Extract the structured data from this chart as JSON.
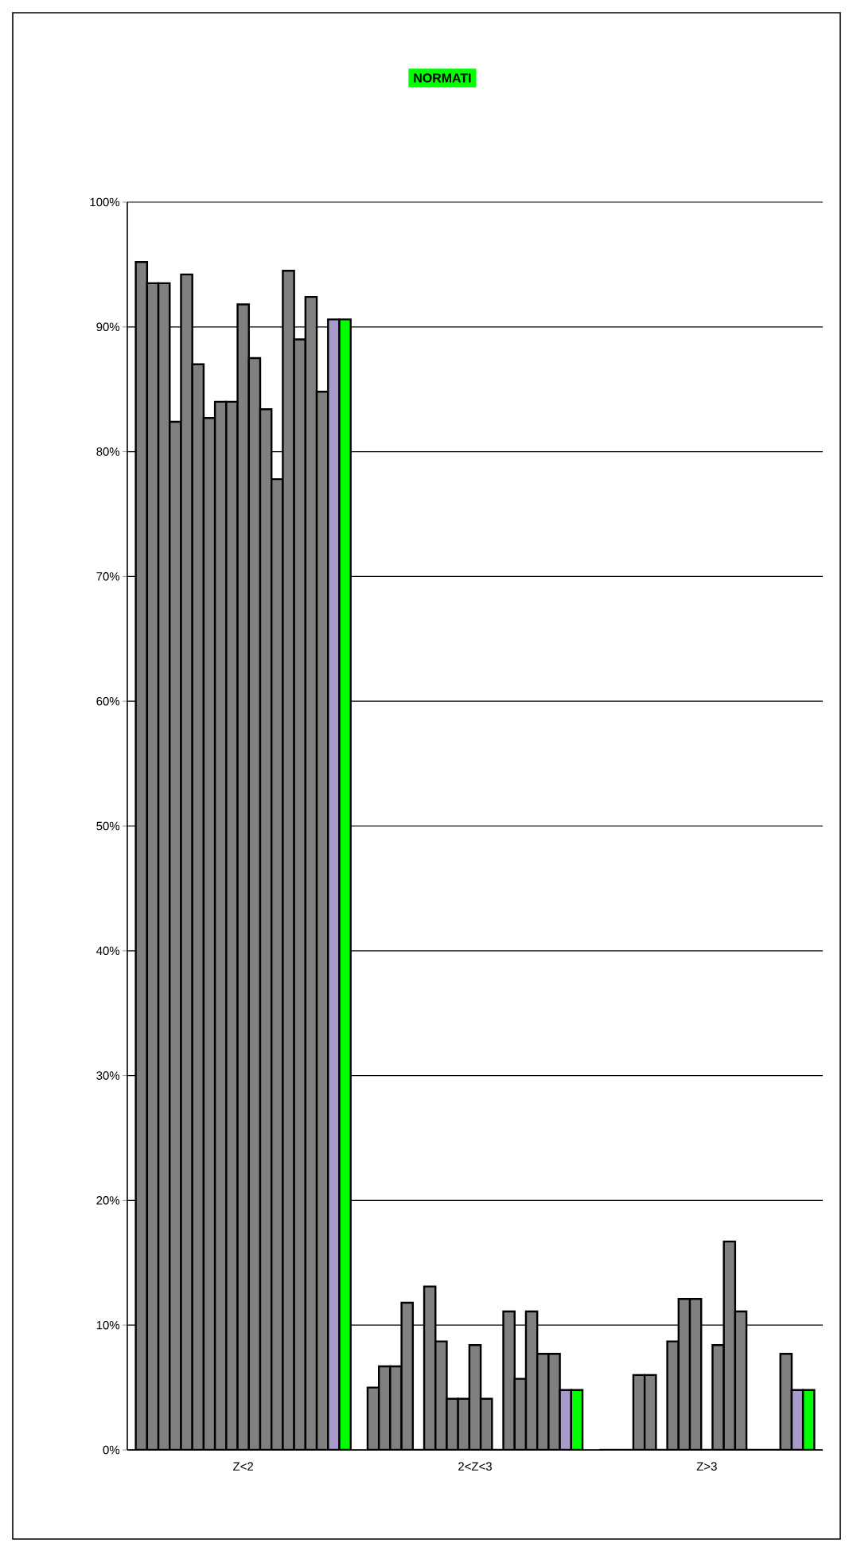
{
  "chart_data": {
    "type": "bar",
    "title": "NORMATI",
    "categories": [
      "Z<2",
      "2<Z<3",
      "Z>3"
    ],
    "ylim": [
      0,
      100
    ],
    "yticks": [
      {
        "value": 0,
        "label": "0%"
      },
      {
        "value": 10,
        "label": "10%"
      },
      {
        "value": 20,
        "label": "20%"
      },
      {
        "value": 30,
        "label": "30%"
      },
      {
        "value": 40,
        "label": "40%"
      },
      {
        "value": 50,
        "label": "50%"
      },
      {
        "value": 60,
        "label": "60%"
      },
      {
        "value": 70,
        "label": "70%"
      },
      {
        "value": 80,
        "label": "80%"
      },
      {
        "value": 90,
        "label": "90%"
      },
      {
        "value": 100,
        "label": "100%"
      }
    ],
    "grid": "y",
    "series": [
      {
        "color": "#808080",
        "values": [
          95.2,
          5.0,
          0
        ]
      },
      {
        "color": "#808080",
        "values": [
          93.5,
          6.7,
          0
        ]
      },
      {
        "color": "#808080",
        "values": [
          93.5,
          6.7,
          0
        ]
      },
      {
        "color": "#808080",
        "values": [
          82.4,
          11.8,
          6.0
        ]
      },
      {
        "color": "#808080",
        "values": [
          94.2,
          0,
          6.0
        ]
      },
      {
        "color": "#808080",
        "values": [
          87.0,
          13.1,
          0
        ]
      },
      {
        "color": "#808080",
        "values": [
          82.7,
          8.7,
          8.7
        ]
      },
      {
        "color": "#808080",
        "values": [
          84.0,
          4.1,
          12.1
        ]
      },
      {
        "color": "#808080",
        "values": [
          84.0,
          4.1,
          12.1
        ]
      },
      {
        "color": "#808080",
        "values": [
          91.8,
          8.4,
          0
        ]
      },
      {
        "color": "#808080",
        "values": [
          87.5,
          4.1,
          8.4
        ]
      },
      {
        "color": "#808080",
        "values": [
          83.4,
          0,
          16.7
        ]
      },
      {
        "color": "#808080",
        "values": [
          77.8,
          11.1,
          11.1
        ]
      },
      {
        "color": "#808080",
        "values": [
          94.5,
          5.7,
          0
        ]
      },
      {
        "color": "#808080",
        "values": [
          89.0,
          11.1,
          0
        ]
      },
      {
        "color": "#808080",
        "values": [
          92.4,
          7.7,
          0
        ]
      },
      {
        "color": "#808080",
        "values": [
          84.8,
          7.7,
          7.7
        ]
      },
      {
        "color": "#a99bc9",
        "values": [
          90.6,
          4.8,
          4.8
        ]
      },
      {
        "color": "#00ff00",
        "values": [
          90.6,
          4.8,
          4.8
        ]
      }
    ]
  }
}
